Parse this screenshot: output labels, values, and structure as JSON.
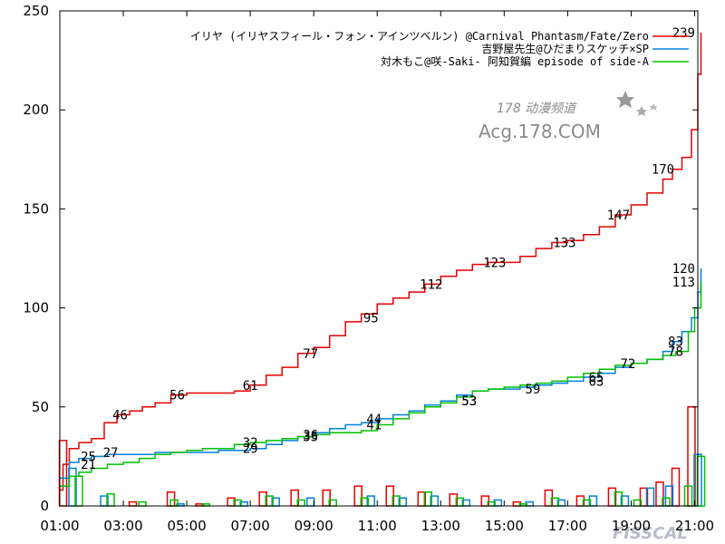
{
  "chart_data": {
    "type": "line",
    "y_ticks": [
      0,
      50,
      100,
      150,
      200,
      250
    ],
    "x_ticks": [
      "01:00",
      "03:00",
      "05:00",
      "07:00",
      "09:00",
      "11:00",
      "13:00",
      "15:00",
      "17:00",
      "19:00",
      "21:00"
    ],
    "ylim": [
      0,
      250
    ],
    "xlim": [
      1,
      21.1
    ],
    "grid": false,
    "legend_position": "top-right",
    "series": [
      {
        "name": "イリヤ (イリヤスフィール・フォン・アインツベルン) @Carnival Phantasm/Fate/Zero",
        "color": "#e60000",
        "cumulative": [
          [
            1.0,
            8
          ],
          [
            1.1,
            21
          ],
          [
            1.3,
            29
          ],
          [
            1.6,
            32
          ],
          [
            2.0,
            34
          ],
          [
            2.4,
            42
          ],
          [
            2.8,
            46
          ],
          [
            3.2,
            48
          ],
          [
            3.6,
            50
          ],
          [
            4.0,
            52
          ],
          [
            4.5,
            56
          ],
          [
            5.0,
            57
          ],
          [
            5.5,
            57
          ],
          [
            6.0,
            57
          ],
          [
            6.5,
            58
          ],
          [
            7.0,
            61
          ],
          [
            7.5,
            66
          ],
          [
            8.0,
            70
          ],
          [
            8.5,
            77
          ],
          [
            9.0,
            80
          ],
          [
            9.5,
            86
          ],
          [
            10.0,
            93
          ],
          [
            10.5,
            97
          ],
          [
            11.0,
            102
          ],
          [
            11.5,
            105
          ],
          [
            12.0,
            108
          ],
          [
            12.5,
            112
          ],
          [
            13.0,
            116
          ],
          [
            13.5,
            119
          ],
          [
            14.0,
            122
          ],
          [
            14.5,
            123
          ],
          [
            15.0,
            123
          ],
          [
            15.5,
            126
          ],
          [
            16.0,
            130
          ],
          [
            16.5,
            133
          ],
          [
            17.0,
            134
          ],
          [
            17.5,
            137
          ],
          [
            18.0,
            141
          ],
          [
            18.5,
            147
          ],
          [
            19.0,
            152
          ],
          [
            19.5,
            158
          ],
          [
            20.0,
            165
          ],
          [
            20.3,
            170
          ],
          [
            20.6,
            176
          ],
          [
            20.9,
            190
          ],
          [
            21.1,
            218
          ],
          [
            21.2,
            239
          ]
        ],
        "hourly": [
          [
            1.1,
            33
          ],
          [
            3.3,
            2
          ],
          [
            4.5,
            7
          ],
          [
            5.4,
            1
          ],
          [
            6.4,
            4
          ],
          [
            7.4,
            7
          ],
          [
            8.4,
            8
          ],
          [
            9.4,
            8
          ],
          [
            10.4,
            10
          ],
          [
            11.4,
            10
          ],
          [
            12.4,
            7
          ],
          [
            13.4,
            6
          ],
          [
            14.4,
            5
          ],
          [
            15.4,
            2
          ],
          [
            16.4,
            8
          ],
          [
            17.4,
            5
          ],
          [
            18.4,
            9
          ],
          [
            19.4,
            9
          ],
          [
            19.9,
            12
          ],
          [
            20.4,
            19
          ],
          [
            20.9,
            50
          ]
        ],
        "annotations": [
          [
            2.9,
            46
          ],
          [
            4.7,
            56
          ],
          [
            7.0,
            61
          ],
          [
            8.9,
            77
          ],
          [
            10.8,
            95
          ],
          [
            12.7,
            112
          ],
          [
            14.7,
            123
          ],
          [
            16.9,
            133
          ],
          [
            18.6,
            147
          ],
          [
            20.0,
            170
          ],
          [
            21.1,
            239
          ]
        ]
      },
      {
        "name": "吉野屋先生@ひだまりスケッチ×SP",
        "color": "#0080e0",
        "cumulative": [
          [
            1.0,
            14
          ],
          [
            1.3,
            22
          ],
          [
            1.6,
            24
          ],
          [
            2.0,
            25
          ],
          [
            2.5,
            26
          ],
          [
            3.0,
            26
          ],
          [
            3.5,
            26
          ],
          [
            4.0,
            27
          ],
          [
            5.0,
            27
          ],
          [
            6.0,
            28
          ],
          [
            7.0,
            29
          ],
          [
            7.5,
            31
          ],
          [
            8.0,
            33
          ],
          [
            8.5,
            35
          ],
          [
            9.0,
            37
          ],
          [
            9.5,
            39
          ],
          [
            10.0,
            41
          ],
          [
            10.5,
            42
          ],
          [
            11.0,
            44
          ],
          [
            11.5,
            46
          ],
          [
            12.0,
            48
          ],
          [
            12.5,
            51
          ],
          [
            13.0,
            53
          ],
          [
            13.5,
            56
          ],
          [
            14.0,
            58
          ],
          [
            14.5,
            59
          ],
          [
            15.0,
            59
          ],
          [
            15.5,
            60
          ],
          [
            16.0,
            61
          ],
          [
            16.5,
            62
          ],
          [
            17.0,
            63
          ],
          [
            17.5,
            65
          ],
          [
            18.0,
            67
          ],
          [
            18.5,
            70
          ],
          [
            19.0,
            72
          ],
          [
            19.5,
            74
          ],
          [
            20.0,
            78
          ],
          [
            20.3,
            83
          ],
          [
            20.6,
            88
          ],
          [
            20.9,
            95
          ],
          [
            21.1,
            108
          ],
          [
            21.2,
            120
          ]
        ],
        "hourly": [
          [
            1.4,
            19
          ],
          [
            2.4,
            5
          ],
          [
            4.8,
            1
          ],
          [
            6.8,
            2
          ],
          [
            7.8,
            4
          ],
          [
            8.9,
            4
          ],
          [
            10.8,
            5
          ],
          [
            11.8,
            4
          ],
          [
            12.8,
            5
          ],
          [
            13.8,
            3
          ],
          [
            14.8,
            3
          ],
          [
            15.8,
            2
          ],
          [
            16.8,
            3
          ],
          [
            17.8,
            5
          ],
          [
            18.8,
            5
          ],
          [
            19.6,
            9
          ],
          [
            20.2,
            10
          ],
          [
            21.1,
            26
          ]
        ],
        "annotations": [
          [
            1.9,
            25
          ],
          [
            2.6,
            27
          ],
          [
            7.0,
            29
          ],
          [
            8.9,
            36
          ],
          [
            10.9,
            44
          ],
          [
            13.9,
            53
          ],
          [
            15.9,
            59
          ],
          [
            17.9,
            65
          ],
          [
            20.4,
            83
          ],
          [
            21.1,
            120
          ]
        ]
      },
      {
        "name": "対木もこ@咲-Saki- 阿知賀編 episode of side-A",
        "color": "#00c000",
        "cumulative": [
          [
            1.0,
            10
          ],
          [
            1.3,
            15
          ],
          [
            1.6,
            17
          ],
          [
            2.0,
            19
          ],
          [
            2.5,
            21
          ],
          [
            3.0,
            22
          ],
          [
            3.5,
            24
          ],
          [
            4.0,
            26
          ],
          [
            4.5,
            27
          ],
          [
            5.0,
            28
          ],
          [
            5.5,
            29
          ],
          [
            6.0,
            29
          ],
          [
            6.5,
            31
          ],
          [
            7.0,
            32
          ],
          [
            7.5,
            33
          ],
          [
            8.0,
            34
          ],
          [
            8.5,
            35
          ],
          [
            9.0,
            36
          ],
          [
            9.5,
            37
          ],
          [
            10.0,
            37
          ],
          [
            10.5,
            38
          ],
          [
            11.0,
            41
          ],
          [
            11.5,
            44
          ],
          [
            12.0,
            47
          ],
          [
            12.5,
            50
          ],
          [
            13.0,
            52
          ],
          [
            13.5,
            55
          ],
          [
            14.0,
            58
          ],
          [
            14.5,
            59
          ],
          [
            15.0,
            60
          ],
          [
            15.5,
            61
          ],
          [
            16.0,
            62
          ],
          [
            16.5,
            63
          ],
          [
            17.0,
            65
          ],
          [
            17.5,
            67
          ],
          [
            18.0,
            69
          ],
          [
            18.5,
            71
          ],
          [
            19.0,
            72
          ],
          [
            19.5,
            74
          ],
          [
            20.0,
            76
          ],
          [
            20.4,
            78
          ],
          [
            20.8,
            88
          ],
          [
            21.0,
            100
          ],
          [
            21.2,
            113
          ]
        ],
        "hourly": [
          [
            1.6,
            15
          ],
          [
            2.6,
            6
          ],
          [
            3.6,
            2
          ],
          [
            4.6,
            3
          ],
          [
            5.6,
            1
          ],
          [
            6.6,
            3
          ],
          [
            7.6,
            5
          ],
          [
            8.6,
            3
          ],
          [
            9.6,
            3
          ],
          [
            10.6,
            4
          ],
          [
            11.6,
            5
          ],
          [
            12.6,
            7
          ],
          [
            13.6,
            4
          ],
          [
            14.6,
            2
          ],
          [
            15.6,
            1
          ],
          [
            16.6,
            4
          ],
          [
            17.6,
            3
          ],
          [
            18.6,
            7
          ],
          [
            19.2,
            3
          ],
          [
            20.1,
            4
          ],
          [
            20.8,
            10
          ],
          [
            21.2,
            25
          ]
        ],
        "annotations": [
          [
            1.9,
            21
          ],
          [
            7.0,
            32
          ],
          [
            8.9,
            35
          ],
          [
            10.9,
            41
          ],
          [
            13.9,
            53
          ],
          [
            17.9,
            63
          ],
          [
            18.9,
            72
          ],
          [
            20.4,
            78
          ],
          [
            21.1,
            113
          ]
        ]
      }
    ],
    "watermarks": [
      "178 动漫频道",
      "Acg.178.COM",
      "FISSCAL"
    ]
  }
}
